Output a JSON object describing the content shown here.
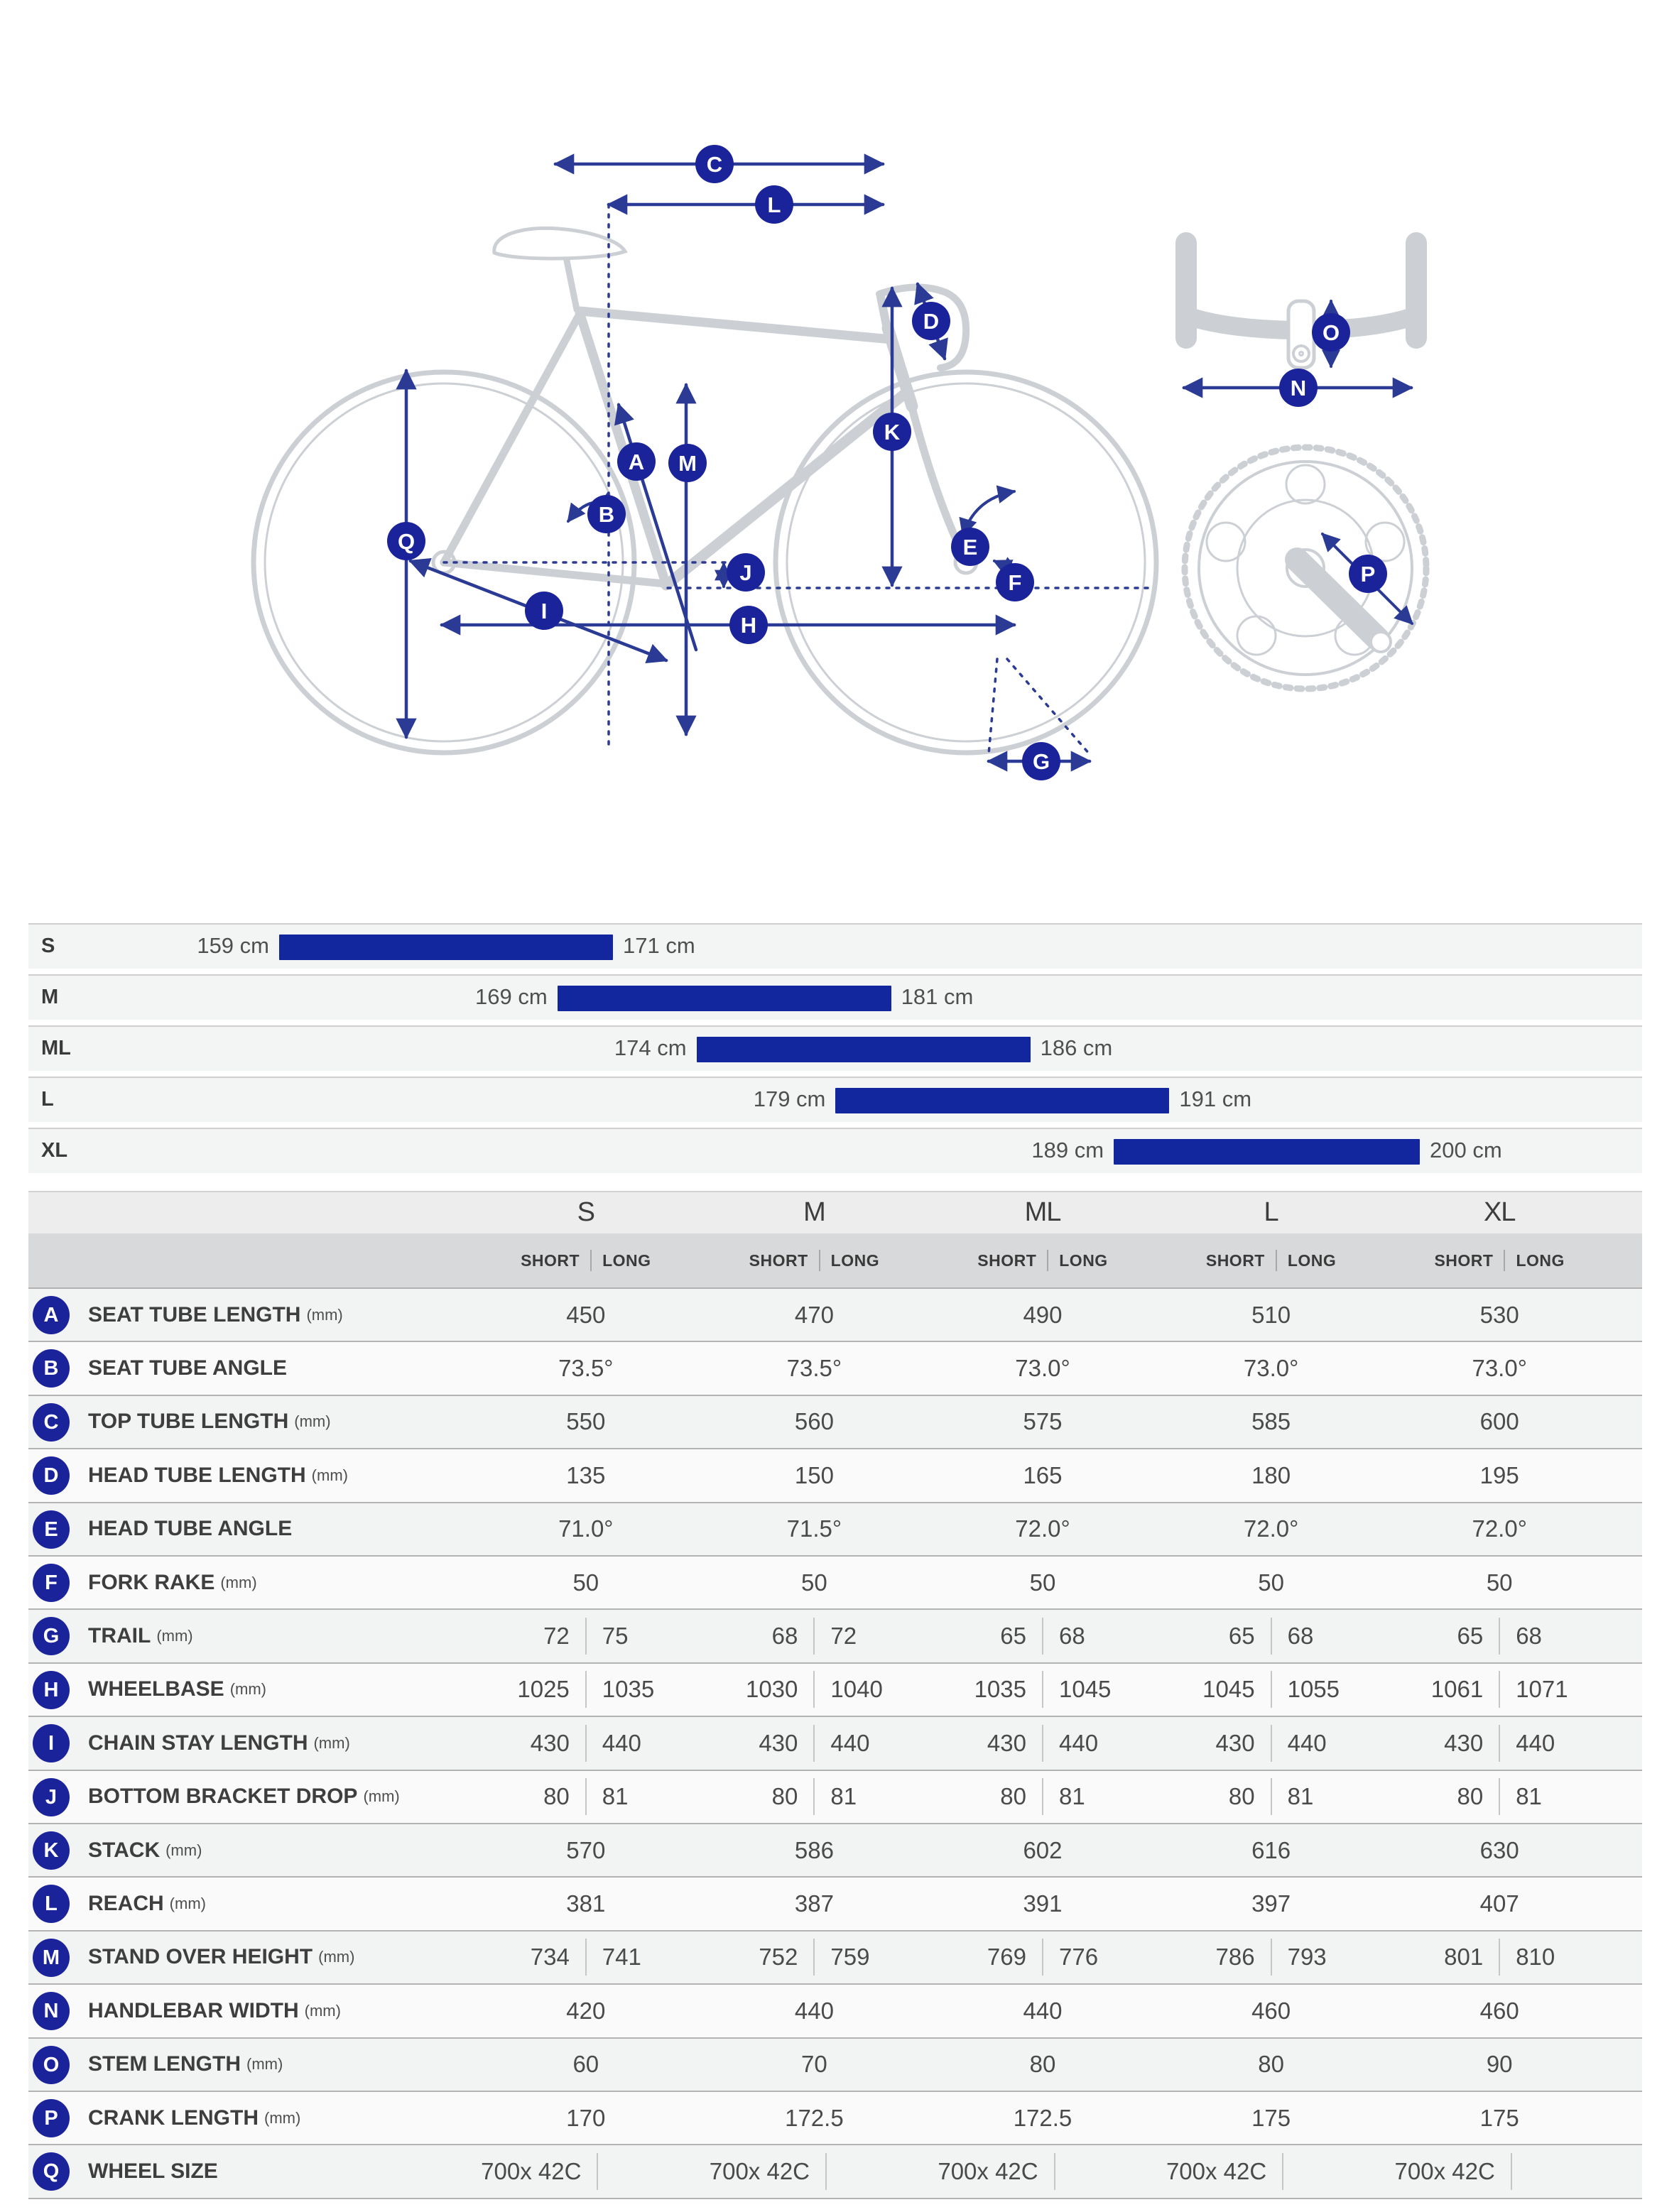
{
  "colors": {
    "accent_blue": "#12269e",
    "badge_blue": "#1b239b",
    "arrow_blue": "#2b3a94",
    "bike_grey": "#ccd0d5"
  },
  "diagram": {
    "letters": [
      "A",
      "B",
      "C",
      "D",
      "E",
      "F",
      "G",
      "H",
      "I",
      "J",
      "K",
      "L",
      "M",
      "N",
      "O",
      "P",
      "Q"
    ]
  },
  "chart_data": [
    {
      "type": "bar",
      "subtype": "horizontal-range",
      "title": "Rider height range by frame size",
      "unit": "cm",
      "categories": [
        "S",
        "M",
        "ML",
        "L",
        "XL"
      ],
      "series": [
        {
          "name": "rider-height-range",
          "ranges": [
            [
              159,
              171
            ],
            [
              169,
              181
            ],
            [
              174,
              186
            ],
            [
              179,
              191
            ],
            [
              189,
              200
            ]
          ]
        }
      ],
      "value_labels": [
        [
          "159 cm",
          "171 cm"
        ],
        [
          "169 cm",
          "181 cm"
        ],
        [
          "174 cm",
          "186 cm"
        ],
        [
          "179 cm",
          "191 cm"
        ],
        [
          "189 cm",
          "200 cm"
        ]
      ],
      "xlim": [
        150,
        210
      ],
      "grid": false,
      "legend": false,
      "bar_color": "#12269e"
    },
    {
      "type": "table",
      "columns": [
        "S",
        "M",
        "ML",
        "L",
        "XL"
      ],
      "sub_columns": [
        "SHORT",
        "LONG"
      ],
      "rows": [
        {
          "letter": "A",
          "label": "SEAT TUBE LENGTH",
          "unit": "(mm)",
          "values": [
            [
              "450"
            ],
            [
              "470"
            ],
            [
              "490"
            ],
            [
              "510"
            ],
            [
              "530"
            ]
          ]
        },
        {
          "letter": "B",
          "label": "SEAT TUBE ANGLE",
          "unit": "",
          "values": [
            [
              "73.5°"
            ],
            [
              "73.5°"
            ],
            [
              "73.0°"
            ],
            [
              "73.0°"
            ],
            [
              "73.0°"
            ]
          ]
        },
        {
          "letter": "C",
          "label": "TOP TUBE LENGTH",
          "unit": "(mm)",
          "values": [
            [
              "550"
            ],
            [
              "560"
            ],
            [
              "575"
            ],
            [
              "585"
            ],
            [
              "600"
            ]
          ]
        },
        {
          "letter": "D",
          "label": "HEAD TUBE LENGTH",
          "unit": "(mm)",
          "values": [
            [
              "135"
            ],
            [
              "150"
            ],
            [
              "165"
            ],
            [
              "180"
            ],
            [
              "195"
            ]
          ]
        },
        {
          "letter": "E",
          "label": "HEAD TUBE ANGLE",
          "unit": "",
          "values": [
            [
              "71.0°"
            ],
            [
              "71.5°"
            ],
            [
              "72.0°"
            ],
            [
              "72.0°"
            ],
            [
              "72.0°"
            ]
          ]
        },
        {
          "letter": "F",
          "label": "FORK RAKE",
          "unit": "(mm)",
          "values": [
            [
              "50"
            ],
            [
              "50"
            ],
            [
              "50"
            ],
            [
              "50"
            ],
            [
              "50"
            ]
          ]
        },
        {
          "letter": "G",
          "label": "TRAIL",
          "unit": "(mm)",
          "values": [
            [
              "72",
              "75"
            ],
            [
              "68",
              "72"
            ],
            [
              "65",
              "68"
            ],
            [
              "65",
              "68"
            ],
            [
              "65",
              "68"
            ]
          ]
        },
        {
          "letter": "H",
          "label": "WHEELBASE",
          "unit": "(mm)",
          "values": [
            [
              "1025",
              "1035"
            ],
            [
              "1030",
              "1040"
            ],
            [
              "1035",
              "1045"
            ],
            [
              "1045",
              "1055"
            ],
            [
              "1061",
              "1071"
            ]
          ]
        },
        {
          "letter": "I",
          "label": "CHAIN STAY LENGTH",
          "unit": "(mm)",
          "values": [
            [
              "430",
              "440"
            ],
            [
              "430",
              "440"
            ],
            [
              "430",
              "440"
            ],
            [
              "430",
              "440"
            ],
            [
              "430",
              "440"
            ]
          ]
        },
        {
          "letter": "J",
          "label": "BOTTOM BRACKET DROP",
          "unit": "(mm)",
          "values": [
            [
              "80",
              "81"
            ],
            [
              "80",
              "81"
            ],
            [
              "80",
              "81"
            ],
            [
              "80",
              "81"
            ],
            [
              "80",
              "81"
            ]
          ]
        },
        {
          "letter": "K",
          "label": "STACK",
          "unit": "(mm)",
          "values": [
            [
              "570"
            ],
            [
              "586"
            ],
            [
              "602"
            ],
            [
              "616"
            ],
            [
              "630"
            ]
          ]
        },
        {
          "letter": "L",
          "label": "REACH",
          "unit": "(mm)",
          "values": [
            [
              "381"
            ],
            [
              "387"
            ],
            [
              "391"
            ],
            [
              "397"
            ],
            [
              "407"
            ]
          ]
        },
        {
          "letter": "M",
          "label": "STAND OVER HEIGHT",
          "unit": "(mm)",
          "values": [
            [
              "734",
              "741"
            ],
            [
              "752",
              "759"
            ],
            [
              "769",
              "776"
            ],
            [
              "786",
              "793"
            ],
            [
              "801",
              "810"
            ]
          ]
        },
        {
          "letter": "N",
          "label": "HANDLEBAR WIDTH",
          "unit": "(mm)",
          "values": [
            [
              "420"
            ],
            [
              "440"
            ],
            [
              "440"
            ],
            [
              "460"
            ],
            [
              "460"
            ]
          ]
        },
        {
          "letter": "O",
          "label": "STEM LENGTH",
          "unit": "(mm)",
          "values": [
            [
              "60"
            ],
            [
              "70"
            ],
            [
              "80"
            ],
            [
              "80"
            ],
            [
              "90"
            ]
          ]
        },
        {
          "letter": "P",
          "label": "CRANK LENGTH",
          "unit": "(mm)",
          "values": [
            [
              "170"
            ],
            [
              "172.5"
            ],
            [
              "172.5"
            ],
            [
              "175"
            ],
            [
              "175"
            ]
          ]
        },
        {
          "letter": "Q",
          "label": "WHEEL SIZE",
          "unit": "",
          "values": [
            [
              "700x 42C",
              ""
            ],
            [
              "700x 42C",
              ""
            ],
            [
              "700x 42C",
              ""
            ],
            [
              "700x 42C",
              ""
            ],
            [
              "700x 42C",
              ""
            ]
          ]
        }
      ]
    }
  ]
}
